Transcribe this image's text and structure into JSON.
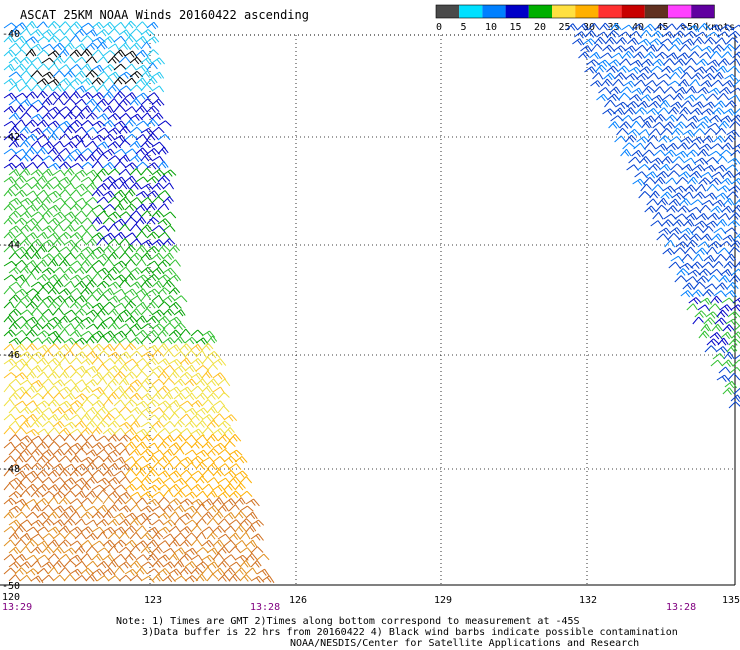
{
  "title": "ASCAT 25KM NOAA Winds 20160422 ascending",
  "legend": {
    "ticks": [
      "0",
      "5",
      "10",
      "15",
      "20",
      "25",
      "30",
      "35",
      "40",
      "45",
      ">50 knots"
    ],
    "colors": [
      "#4a4a4a",
      "#00e0ff",
      "#0080ff",
      "#0000c8",
      "#00b000",
      "#ffe040",
      "#ffb000",
      "#ff3030",
      "#c80000",
      "#603020",
      "#ff40ff",
      "#6000a0"
    ]
  },
  "map": {
    "lon_labels": [
      "120",
      "123",
      "126",
      "129",
      "132",
      "135"
    ],
    "lat_labels": [
      "-40",
      "-42",
      "-44",
      "-46",
      "-48",
      "-50"
    ],
    "times": [
      "13:29",
      "13:28",
      "13:28"
    ]
  },
  "notes": {
    "line1": "Note: 1) Times are GMT 2)Times along bottom correspond to measurement at -45S",
    "line2": "3)Data buffer is 22 hrs from 20160422 4) Black wind barbs indicate possible contamination",
    "credit": "NOAA/NESDIS/Center for Satellite Applications and Research"
  }
}
